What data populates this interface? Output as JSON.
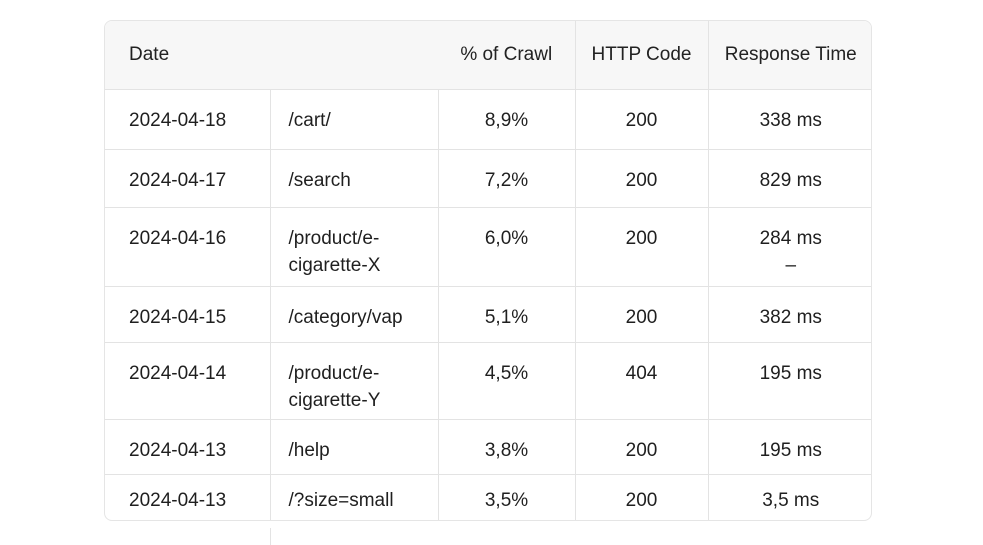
{
  "table": {
    "headers": {
      "date": "Date",
      "crawl": "% of Crawl",
      "http": "HTTP Code",
      "response": "Response Time"
    },
    "rows": [
      {
        "date": "2024-04-18",
        "url": "/cart/",
        "crawl": "8,9%",
        "http": "200",
        "response": "338 ms"
      },
      {
        "date": "2024-04-17",
        "url": "/search",
        "crawl": "7,2%",
        "http": "200",
        "response": "829 ms"
      },
      {
        "date": "2024-04-16",
        "url": "/product/e-cigarette-X",
        "crawl": "6,0%",
        "http": "200",
        "response": "284 ms",
        "response_extra": "–"
      },
      {
        "date": "2024-04-15",
        "url": "/category/vap",
        "crawl": "5,1%",
        "http": "200",
        "response": "382 ms"
      },
      {
        "date": "2024-04-14",
        "url": "/product/e-cigarette-Y",
        "crawl": "4,5%",
        "http": "404",
        "response": "195 ms"
      },
      {
        "date": "2024-04-13",
        "url": "/help",
        "crawl": "3,8%",
        "http": "200",
        "response": "195 ms"
      },
      {
        "date": "2024-04-13",
        "url": "/?size=small",
        "crawl": "3,5%",
        "http": "200",
        "response": "3,5 ms"
      }
    ]
  }
}
